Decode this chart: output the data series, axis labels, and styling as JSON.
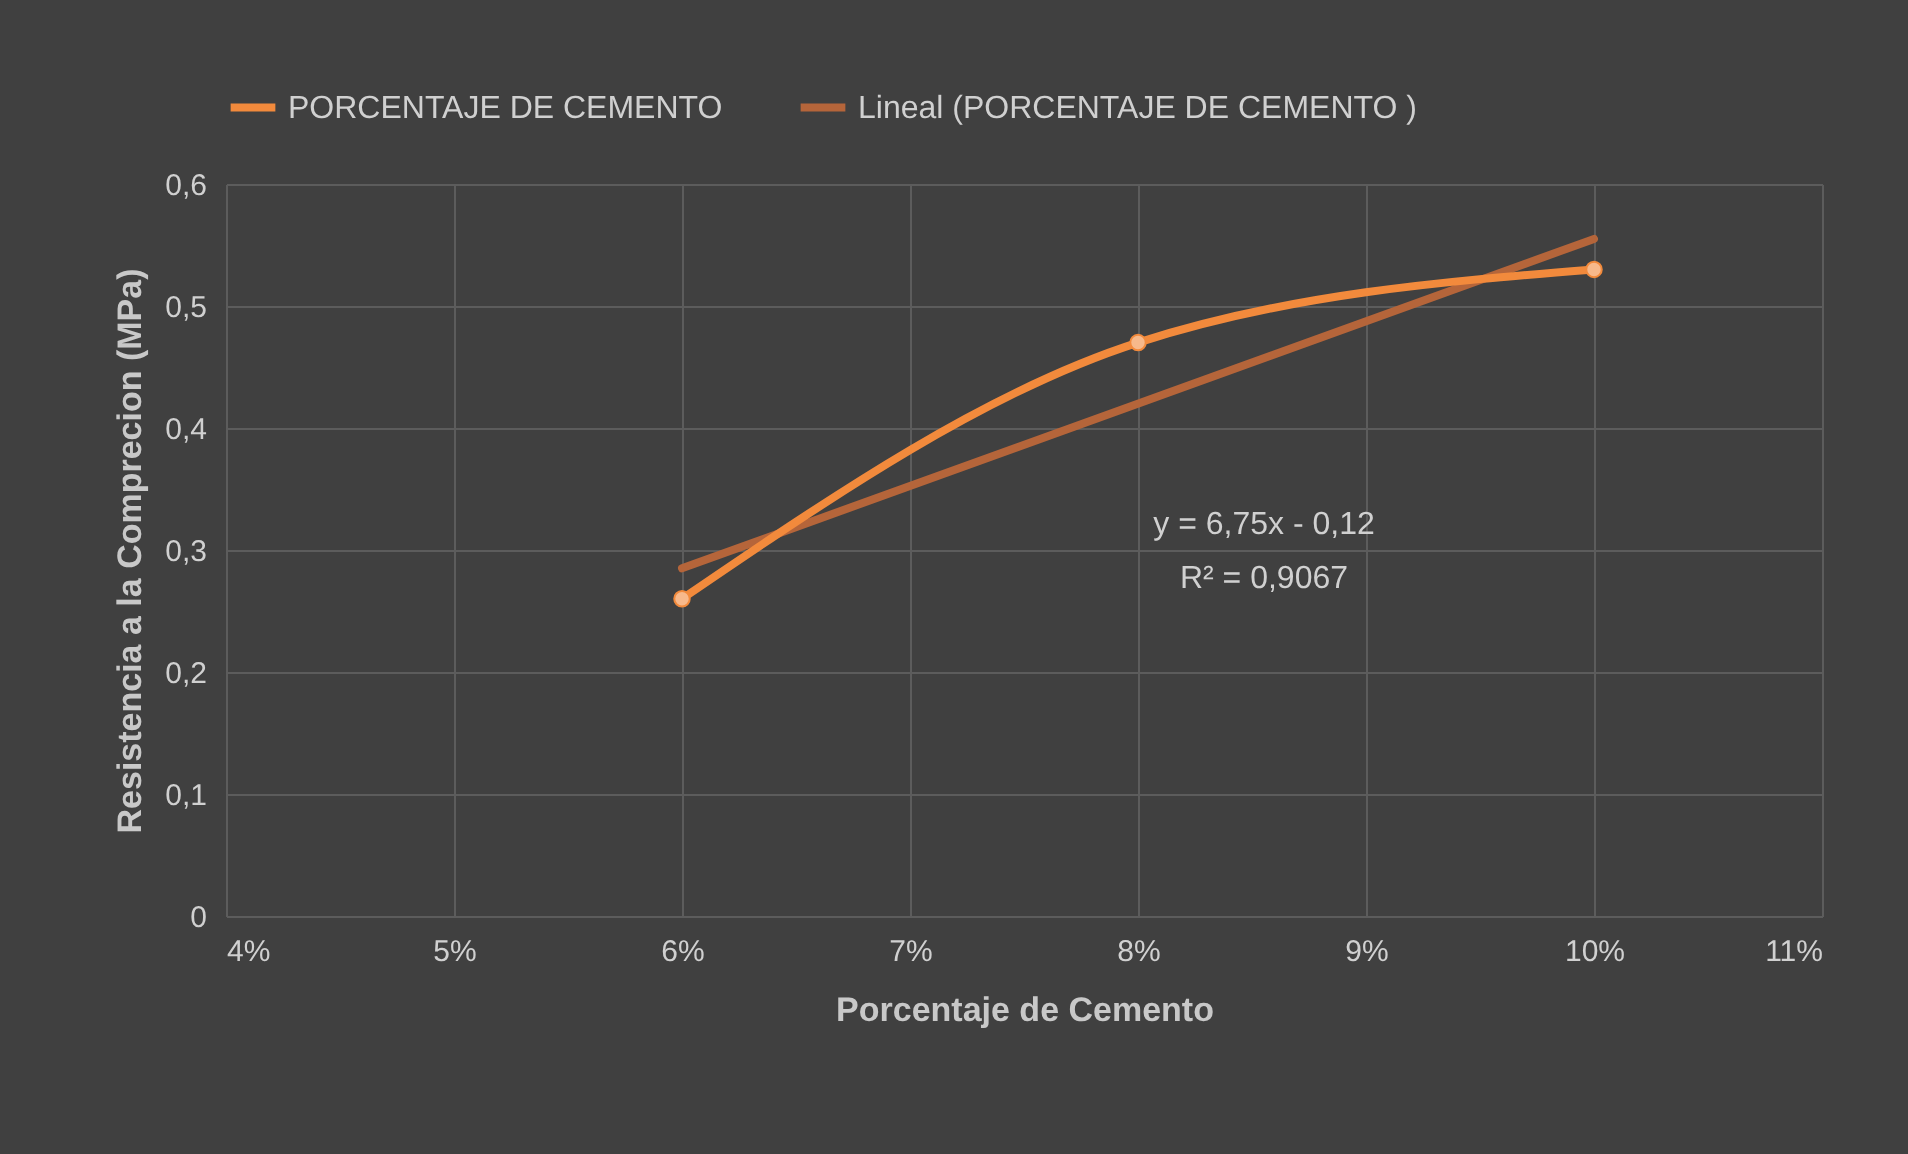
{
  "chart_data": {
    "type": "line",
    "xlabel": "Porcentaje de Cemento",
    "ylabel": "Resistencia a la Comprecion (MPa)",
    "x": [
      0.06,
      0.08,
      0.1
    ],
    "series": [
      {
        "name": "PORCENTAJE DE CEMENTO",
        "color": "#f28a3c",
        "values": [
          0.26,
          0.47,
          0.53
        ],
        "marker": "circle"
      },
      {
        "name": "Lineal (PORCENTAJE DE CEMENTO )",
        "type": "line",
        "color": "#b5653a",
        "x": [
          0.06,
          0.1
        ],
        "values": [
          0.285,
          0.555
        ],
        "marker": "none"
      }
    ],
    "xlim": [
      0.04,
      0.11
    ],
    "xticks": [
      {
        "value": 0.04,
        "label": "4%"
      },
      {
        "value": 0.05,
        "label": "5%"
      },
      {
        "value": 0.06,
        "label": "6%"
      },
      {
        "value": 0.07,
        "label": "7%"
      },
      {
        "value": 0.08,
        "label": "8%"
      },
      {
        "value": 0.09,
        "label": "9%"
      },
      {
        "value": 0.1,
        "label": "10%"
      },
      {
        "value": 0.11,
        "label": "11%"
      }
    ],
    "ylim": [
      0,
      0.6
    ],
    "yticks": [
      0,
      {
        "value": 0.1,
        "label": "0,1"
      },
      {
        "value": 0.2,
        "label": "0,2"
      },
      {
        "value": 0.3,
        "label": "0,3"
      },
      {
        "value": 0.4,
        "label": "0,4"
      },
      {
        "value": 0.5,
        "label": "0,5"
      },
      {
        "value": 0.6,
        "label": "0,6"
      }
    ],
    "annotations": [
      "y = 6,75x - 0,12",
      "R² = 0,9067"
    ],
    "grid": true,
    "legend": "top"
  }
}
